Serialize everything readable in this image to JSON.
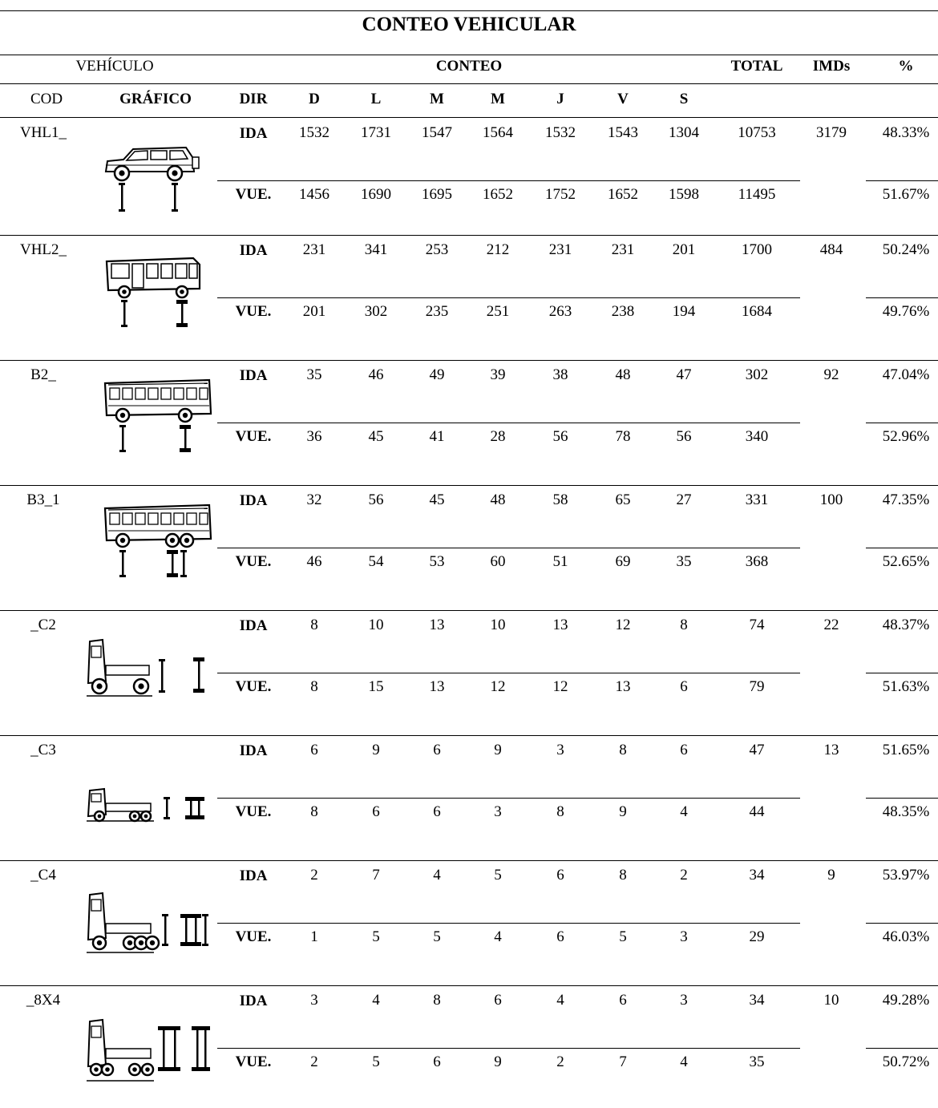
{
  "title": "CONTEO VEHICULAR",
  "header": {
    "vehiculo": "VEHÍCULO",
    "conteo": "CONTEO",
    "total": "TOTAL",
    "imds": "IMDs",
    "pct": "%",
    "cod": "COD",
    "grafico": "GRÁFICO",
    "dir": "DIR",
    "days": [
      "D",
      "L",
      "M",
      "M",
      "J",
      "V",
      "S"
    ]
  },
  "dir_labels": {
    "ida": "IDA",
    "vue": "VUE."
  },
  "rows": [
    {
      "cod": "VHL1_",
      "icon": "suv-icon",
      "ida": [
        "1532",
        "1731",
        "1547",
        "1564",
        "1532",
        "1543",
        "1304"
      ],
      "ida_total": "10753",
      "imds": "3179",
      "ida_pct": "48.33%",
      "vue": [
        "1456",
        "1690",
        "1695",
        "1652",
        "1752",
        "1652",
        "1598"
      ],
      "vue_total": "11495",
      "vue_pct": "51.67%"
    },
    {
      "cod": "VHL2_",
      "icon": "minibus-icon",
      "ida": [
        "231",
        "341",
        "253",
        "212",
        "231",
        "231",
        "201"
      ],
      "ida_total": "1700",
      "imds": "484",
      "ida_pct": "50.24%",
      "vue": [
        "201",
        "302",
        "235",
        "251",
        "263",
        "238",
        "194"
      ],
      "vue_total": "1684",
      "vue_pct": "49.76%"
    },
    {
      "cod": "B2_",
      "icon": "bus-2-axle-icon",
      "ida": [
        "35",
        "46",
        "49",
        "39",
        "38",
        "48",
        "47"
      ],
      "ida_total": "302",
      "imds": "92",
      "ida_pct": "47.04%",
      "vue": [
        "36",
        "45",
        "41",
        "28",
        "56",
        "78",
        "56"
      ],
      "vue_total": "340",
      "vue_pct": "52.96%"
    },
    {
      "cod": "B3_1",
      "icon": "bus-3-axle-icon",
      "ida": [
        "32",
        "56",
        "45",
        "48",
        "58",
        "65",
        "27"
      ],
      "ida_total": "331",
      "imds": "100",
      "ida_pct": "47.35%",
      "vue": [
        "46",
        "54",
        "53",
        "60",
        "51",
        "69",
        "35"
      ],
      "vue_total": "368",
      "vue_pct": "52.65%"
    },
    {
      "cod": "_C2",
      "icon": "truck-c2-icon",
      "ida": [
        "8",
        "10",
        "13",
        "10",
        "13",
        "12",
        "8"
      ],
      "ida_total": "74",
      "imds": "22",
      "ida_pct": "48.37%",
      "vue": [
        "8",
        "15",
        "13",
        "12",
        "12",
        "13",
        "6"
      ],
      "vue_total": "79",
      "vue_pct": "51.63%"
    },
    {
      "cod": "_C3",
      "icon": "truck-c3-icon",
      "ida": [
        "6",
        "9",
        "6",
        "9",
        "3",
        "8",
        "6"
      ],
      "ida_total": "47",
      "imds": "13",
      "ida_pct": "51.65%",
      "vue": [
        "8",
        "6",
        "6",
        "3",
        "8",
        "9",
        "4"
      ],
      "vue_total": "44",
      "vue_pct": "48.35%"
    },
    {
      "cod": "_C4",
      "icon": "truck-c4-icon",
      "ida": [
        "2",
        "7",
        "4",
        "5",
        "6",
        "8",
        "2"
      ],
      "ida_total": "34",
      "imds": "9",
      "ida_pct": "53.97%",
      "vue": [
        "1",
        "5",
        "5",
        "4",
        "6",
        "5",
        "3"
      ],
      "vue_total": "29",
      "vue_pct": "46.03%"
    },
    {
      "cod": "_8X4",
      "icon": "truck-8x4-icon",
      "ida": [
        "3",
        "4",
        "8",
        "6",
        "4",
        "6",
        "3"
      ],
      "ida_total": "34",
      "imds": "10",
      "ida_pct": "49.28%",
      "vue": [
        "2",
        "5",
        "6",
        "9",
        "2",
        "7",
        "4"
      ],
      "vue_total": "35",
      "vue_pct": "50.72%"
    }
  ]
}
